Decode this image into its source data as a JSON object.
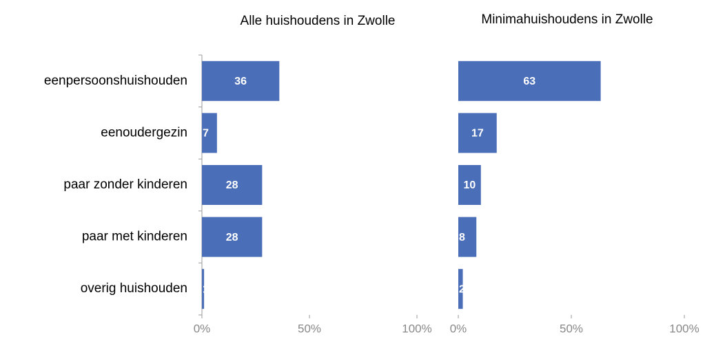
{
  "chart_data": [
    {
      "type": "bar",
      "orientation": "horizontal",
      "title": "Alle huishoudens in Zwolle",
      "categories": [
        "eenpersoonshuishouden",
        "eenoudergezin",
        "paar zonder kinderen",
        "paar met kinderen",
        "overig huishouden"
      ],
      "values": [
        36,
        7,
        28,
        28,
        1
      ],
      "color": "#4a6eb8",
      "xlim": [
        0,
        100
      ],
      "xticks": [
        {
          "value": 0,
          "label": "0%"
        },
        {
          "value": 50,
          "label": "50%"
        },
        {
          "value": 100,
          "label": "100%"
        }
      ]
    },
    {
      "type": "bar",
      "orientation": "horizontal",
      "title": "Minimahuishoudens in Zwolle",
      "values": [
        63,
        17,
        10,
        8,
        2
      ],
      "color": "#4a6eb8",
      "xlim": [
        0,
        100
      ],
      "xticks": [
        {
          "value": 0,
          "label": "0%"
        },
        {
          "value": 50,
          "label": "50%"
        },
        {
          "value": 100,
          "label": "100%"
        }
      ]
    }
  ]
}
